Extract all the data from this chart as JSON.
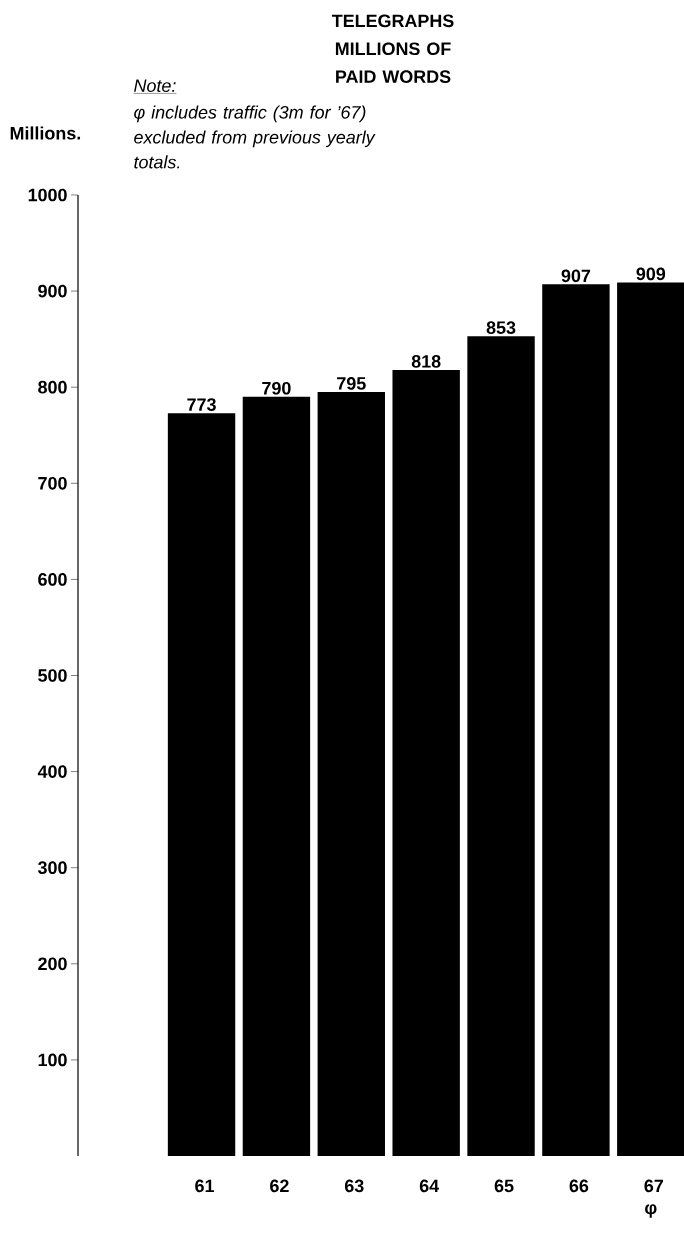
{
  "chart_data": {
    "type": "bar",
    "title": "TELEGRAPHS MILLIONS OF PAID WORDS",
    "ylabel": "Millions.",
    "categories": [
      "61",
      "62",
      "63",
      "64",
      "65",
      "66",
      "67 φ"
    ],
    "values": [
      773,
      790,
      795,
      818,
      853,
      907,
      909
    ],
    "color": "#000000",
    "ylim": [
      0,
      1000
    ],
    "yticks": [
      100,
      200,
      300,
      400,
      500,
      600,
      700,
      800,
      900,
      1000
    ],
    "data_labels": true,
    "annotations": [
      "Note:",
      "φ includes traffic (3m for ’67) excluded from previous yearly totals."
    ]
  }
}
